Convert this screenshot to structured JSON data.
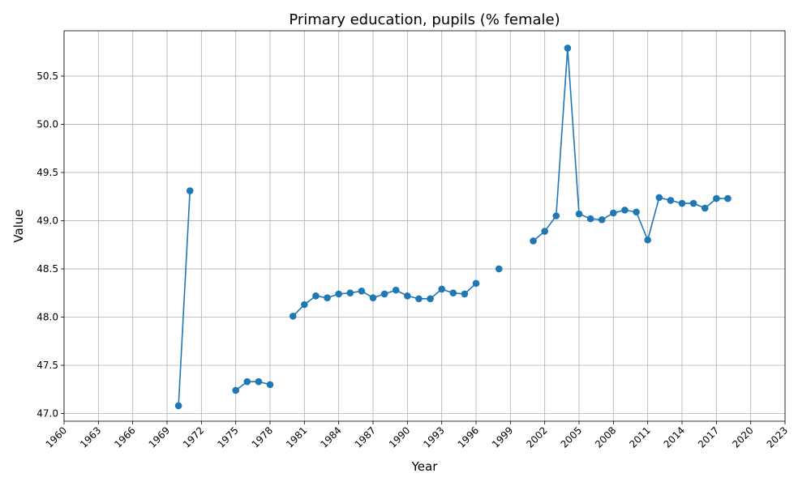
{
  "chart_data": {
    "type": "line",
    "title": "Primary education, pupils (% female)",
    "xlabel": "Year",
    "ylabel": "Value",
    "xlim": [
      1960,
      2023
    ],
    "ylim": [
      46.92,
      50.97
    ],
    "x_ticks": [
      1960,
      1963,
      1966,
      1969,
      1972,
      1975,
      1978,
      1981,
      1984,
      1987,
      1990,
      1993,
      1996,
      1999,
      2002,
      2005,
      2008,
      2011,
      2014,
      2017,
      2020,
      2023
    ],
    "y_ticks": [
      47.0,
      47.5,
      48.0,
      48.5,
      49.0,
      49.5,
      50.0,
      50.5
    ],
    "y_tick_labels": [
      "47.0",
      "47.5",
      "48.0",
      "48.5",
      "49.0",
      "49.5",
      "50.0",
      "50.5"
    ],
    "grid": true,
    "series_color": "#1f77b4",
    "x": [
      1970,
      1971,
      1975,
      1976,
      1977,
      1978,
      1980,
      1981,
      1982,
      1983,
      1984,
      1985,
      1986,
      1987,
      1988,
      1989,
      1990,
      1991,
      1992,
      1993,
      1994,
      1995,
      1996,
      1998,
      2001,
      2002,
      2003,
      2004,
      2005,
      2006,
      2007,
      2008,
      2009,
      2010,
      2011,
      2012,
      2013,
      2014,
      2015,
      2016,
      2017,
      2018
    ],
    "values": [
      47.08,
      49.31,
      47.24,
      47.33,
      47.33,
      47.3,
      48.01,
      48.13,
      48.22,
      48.2,
      48.24,
      48.25,
      48.27,
      48.2,
      48.24,
      48.28,
      48.22,
      48.19,
      48.19,
      48.29,
      48.25,
      48.24,
      48.35,
      48.5,
      48.79,
      48.89,
      49.05,
      50.79,
      49.07,
      49.02,
      49.01,
      49.08,
      49.11,
      49.09,
      48.8,
      49.24,
      49.21,
      49.18,
      49.18,
      49.13,
      49.23,
      49.23
    ]
  }
}
